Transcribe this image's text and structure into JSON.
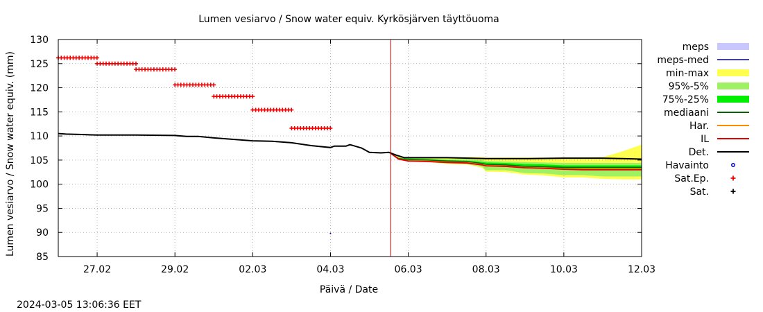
{
  "timestamp": "2024-03-05 13:06:36 EET",
  "chart_data": {
    "type": "line",
    "title": "Lumen vesiarvo / Snow water equiv.  Kyrkösjärven täyttöuoma",
    "xlabel": "Päivä / Date",
    "ylabel": "Lumen vesiarvo / Snow water equiv. (mm)",
    "xlim": [
      0,
      15
    ],
    "ylim": [
      85,
      130
    ],
    "yticks": [
      85,
      90,
      95,
      100,
      105,
      110,
      115,
      120,
      125,
      130
    ],
    "xticks": [
      {
        "x": 1,
        "label": "27.02"
      },
      {
        "x": 3,
        "label": "29.02"
      },
      {
        "x": 5,
        "label": "02.03"
      },
      {
        "x": 7,
        "label": "04.03"
      },
      {
        "x": 9,
        "label": "06.03"
      },
      {
        "x": 11,
        "label": "08.03"
      },
      {
        "x": 13,
        "label": "10.03"
      },
      {
        "x": 15,
        "label": "12.03"
      }
    ],
    "now_x": 8.55,
    "colors": {
      "meps": "#c8c8ff",
      "meps_med": "#3c3cc8",
      "min_max": "#ffff50",
      "p95_5": "#a0f064",
      "p75_25": "#00ee00",
      "mediaani": "#006400",
      "har": "#ff8c00",
      "il": "#e00000",
      "det": "#000000",
      "havainto": "#0000cc",
      "sat_ep": "#ee0000",
      "sat": "#000000",
      "now_line": "#c00000"
    },
    "legend": [
      {
        "key": "meps",
        "label": "meps",
        "style": "box"
      },
      {
        "key": "meps_med",
        "label": "meps-med",
        "style": "line"
      },
      {
        "key": "min_max",
        "label": "min-max",
        "style": "box"
      },
      {
        "key": "p95_5",
        "label": "95%-5%",
        "style": "box"
      },
      {
        "key": "p75_25",
        "label": "75%-25%",
        "style": "box"
      },
      {
        "key": "mediaani",
        "label": "mediaani",
        "style": "line"
      },
      {
        "key": "har",
        "label": "Har.",
        "style": "line"
      },
      {
        "key": "il",
        "label": "IL",
        "style": "line"
      },
      {
        "key": "det",
        "label": "Det.",
        "style": "line"
      },
      {
        "key": "havainto",
        "label": "Havainto",
        "style": "circle"
      },
      {
        "key": "sat_ep",
        "label": "Sat.Ep.",
        "style": "plus"
      },
      {
        "key": "sat",
        "label": "Sat.",
        "style": "plus"
      }
    ],
    "series": {
      "det": {
        "x": [
          0,
          0.2,
          0.6,
          1.0,
          2.0,
          3.0,
          3.3,
          3.6,
          4.0,
          4.5,
          5.0,
          5.5,
          6.0,
          6.5,
          7.0,
          7.1,
          7.4,
          7.5,
          7.8,
          8.0,
          8.3,
          8.5,
          8.7,
          8.9,
          9.2,
          10.0,
          11.0,
          12.0,
          13.0,
          14.0,
          14.5,
          15.0
        ],
        "y": [
          110.5,
          110.4,
          110.3,
          110.2,
          110.2,
          110.1,
          109.9,
          109.9,
          109.6,
          109.3,
          109.0,
          108.9,
          108.6,
          108.0,
          107.6,
          107.9,
          107.9,
          108.2,
          107.5,
          106.6,
          106.5,
          106.6,
          106.0,
          105.5,
          105.5,
          105.5,
          105.3,
          105.3,
          105.4,
          105.4,
          105.3,
          105.2
        ]
      },
      "sat_ep": {
        "segments": [
          {
            "x0": 0.0,
            "x1": 1.0,
            "y": 126.2
          },
          {
            "x0": 1.0,
            "x1": 2.0,
            "y": 125.0
          },
          {
            "x0": 2.0,
            "x1": 3.0,
            "y": 123.8
          },
          {
            "x0": 3.0,
            "x1": 4.0,
            "y": 120.6
          },
          {
            "x0": 4.0,
            "x1": 5.0,
            "y": 118.2
          },
          {
            "x0": 5.0,
            "x1": 6.0,
            "y": 115.4
          },
          {
            "x0": 6.0,
            "x1": 7.0,
            "y": 111.6
          }
        ]
      },
      "havainto": {
        "x": [
          7.0
        ],
        "y": [
          89.8
        ]
      },
      "forecast_x": [
        8.55,
        8.75,
        9.0,
        9.5,
        10.0,
        10.5,
        10.9,
        11.0,
        11.5,
        12.0,
        12.5,
        13.0,
        13.5,
        14.0,
        14.5,
        15.0
      ],
      "min_max": {
        "lo": [
          106.4,
          105.3,
          104.8,
          104.6,
          104.2,
          104.1,
          103.4,
          102.6,
          102.5,
          102.0,
          101.8,
          101.4,
          101.4,
          101.1,
          101.0,
          101.0
        ],
        "hi": [
          106.5,
          105.7,
          105.6,
          105.6,
          105.6,
          105.6,
          105.6,
          105.5,
          105.5,
          105.5,
          105.5,
          105.5,
          105.5,
          105.6,
          106.8,
          108.2
        ]
      },
      "p95_5": {
        "lo": [
          106.4,
          105.3,
          104.9,
          104.7,
          104.3,
          104.2,
          103.6,
          102.9,
          102.9,
          102.3,
          102.2,
          101.9,
          101.9,
          101.6,
          101.6,
          101.6
        ],
        "hi": [
          106.5,
          105.6,
          105.4,
          105.3,
          105.2,
          105.2,
          105.0,
          104.8,
          104.7,
          104.6,
          104.5,
          104.4,
          104.4,
          104.4,
          104.4,
          104.4
        ]
      },
      "p75_25": {
        "lo": [
          106.4,
          105.2,
          104.9,
          104.8,
          104.6,
          104.5,
          104.1,
          103.8,
          103.7,
          103.3,
          103.2,
          103.0,
          103.0,
          103.0,
          103.0,
          103.0
        ],
        "hi": [
          106.5,
          105.4,
          105.3,
          105.2,
          105.0,
          104.9,
          104.6,
          104.5,
          104.4,
          104.2,
          104.1,
          103.9,
          103.9,
          103.9,
          103.9,
          103.9
        ]
      },
      "mediaani": {
        "y": [
          106.4,
          105.3,
          105.1,
          105.0,
          104.8,
          104.7,
          104.3,
          104.1,
          104.0,
          103.7,
          103.6,
          103.5,
          103.5,
          103.5,
          103.5,
          103.5
        ]
      },
      "har": {
        "y": [
          106.4,
          105.2,
          104.9,
          104.8,
          104.6,
          104.5,
          104.1,
          103.9,
          103.8,
          103.5,
          103.4,
          103.2,
          103.2,
          103.2,
          103.2,
          103.2
        ]
      },
      "il": {
        "y": [
          106.4,
          105.2,
          104.8,
          104.7,
          104.5,
          104.4,
          104.0,
          103.8,
          103.7,
          103.4,
          103.3,
          103.1,
          103.0,
          103.0,
          103.0,
          103.0
        ]
      }
    }
  }
}
